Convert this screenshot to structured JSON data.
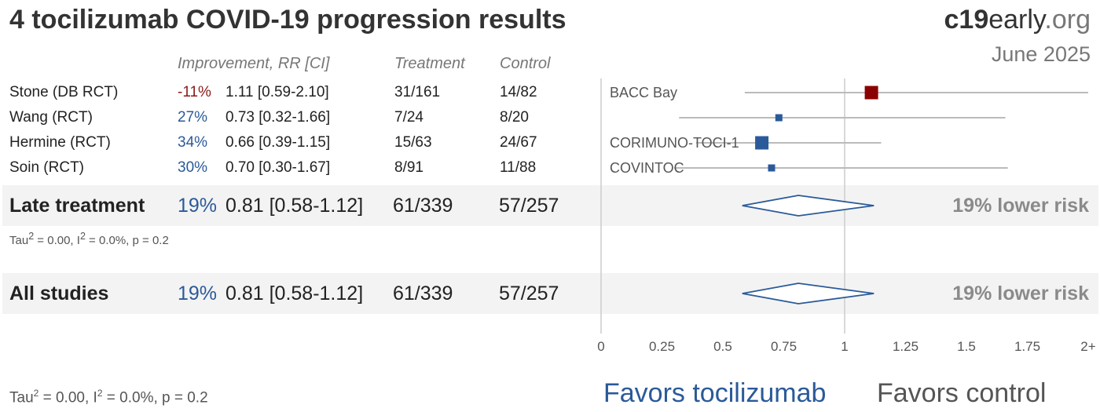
{
  "title": "4 tocilizumab COVID-19 progression results",
  "brand": {
    "bold": "c19",
    "rest": "early",
    "suffix": ".org"
  },
  "date": "June 2025",
  "headers": {
    "improvement": "Improvement, RR [CI]",
    "treatment": "Treatment",
    "control": "Control"
  },
  "studies": [
    {
      "name": "Stone (DB RCT)",
      "improvement": "-11%",
      "rr_text": "1.11 [0.59-2.10]",
      "treatment": "31/161",
      "control": "14/82",
      "rr": 1.11,
      "lo": 0.59,
      "hi": 2.1,
      "label": "BACC Bay",
      "color": "#8b0000",
      "size": "large"
    },
    {
      "name": "Wang (RCT)",
      "improvement": "27%",
      "rr_text": "0.73 [0.32-1.66]",
      "treatment": "7/24",
      "control": "8/20",
      "rr": 0.73,
      "lo": 0.32,
      "hi": 1.66,
      "label": "",
      "color": "#2a5a99",
      "size": "small"
    },
    {
      "name": "Hermine (RCT)",
      "improvement": "34%",
      "rr_text": "0.66 [0.39-1.15]",
      "treatment": "15/63",
      "control": "24/67",
      "rr": 0.66,
      "lo": 0.39,
      "hi": 1.15,
      "label": "CORIMUNO-TOCI-1",
      "color": "#2a5a99",
      "size": "large"
    },
    {
      "name": "Soin (RCT)",
      "improvement": "30%",
      "rr_text": "0.70 [0.30-1.67]",
      "treatment": "8/91",
      "control": "11/88",
      "rr": 0.7,
      "lo": 0.3,
      "hi": 1.67,
      "label": "COVINTOC",
      "color": "#2a5a99",
      "size": "small"
    }
  ],
  "late": {
    "name": "Late treatment",
    "improvement": "19%",
    "rr_text": "0.81 [0.58-1.12]",
    "treatment": "61/339",
    "control": "57/257",
    "rr": 0.81,
    "lo": 0.58,
    "hi": 1.12,
    "risk": "19% lower risk",
    "stat_prefix": "Tau",
    "stat_rest": " = 0.00, I",
    "stat_end": " = 0.0%, p = 0.2"
  },
  "all": {
    "name": "All studies",
    "improvement": "19%",
    "rr_text": "0.81 [0.58-1.12]",
    "treatment": "61/339",
    "control": "57/257",
    "rr": 0.81,
    "lo": 0.58,
    "hi": 1.12,
    "risk": "19% lower risk",
    "stat_prefix": "Tau",
    "stat_rest": " = 0.00, I",
    "stat_end": " = 0.0%, p = 0.2"
  },
  "sup": "2",
  "favors": {
    "left": "Favors tocilizumab",
    "right": "Favors control"
  },
  "chart_data": {
    "type": "forest",
    "xlim": [
      0,
      2
    ],
    "xticks": [
      "0",
      "0.25",
      "0.5",
      "0.75",
      "1",
      "1.25",
      "1.5",
      "1.75",
      "2+"
    ],
    "reference_line": 1,
    "series": [
      {
        "name": "Stone (DB RCT)",
        "value": 1.11,
        "ci": [
          0.59,
          2.1
        ]
      },
      {
        "name": "Wang (RCT)",
        "value": 0.73,
        "ci": [
          0.32,
          1.66
        ]
      },
      {
        "name": "Hermine (RCT)",
        "value": 0.66,
        "ci": [
          0.39,
          1.15
        ]
      },
      {
        "name": "Soin (RCT)",
        "value": 0.7,
        "ci": [
          0.3,
          1.67
        ]
      },
      {
        "name": "Late treatment",
        "value": 0.81,
        "ci": [
          0.58,
          1.12
        ]
      },
      {
        "name": "All studies",
        "value": 0.81,
        "ci": [
          0.58,
          1.12
        ]
      }
    ]
  }
}
